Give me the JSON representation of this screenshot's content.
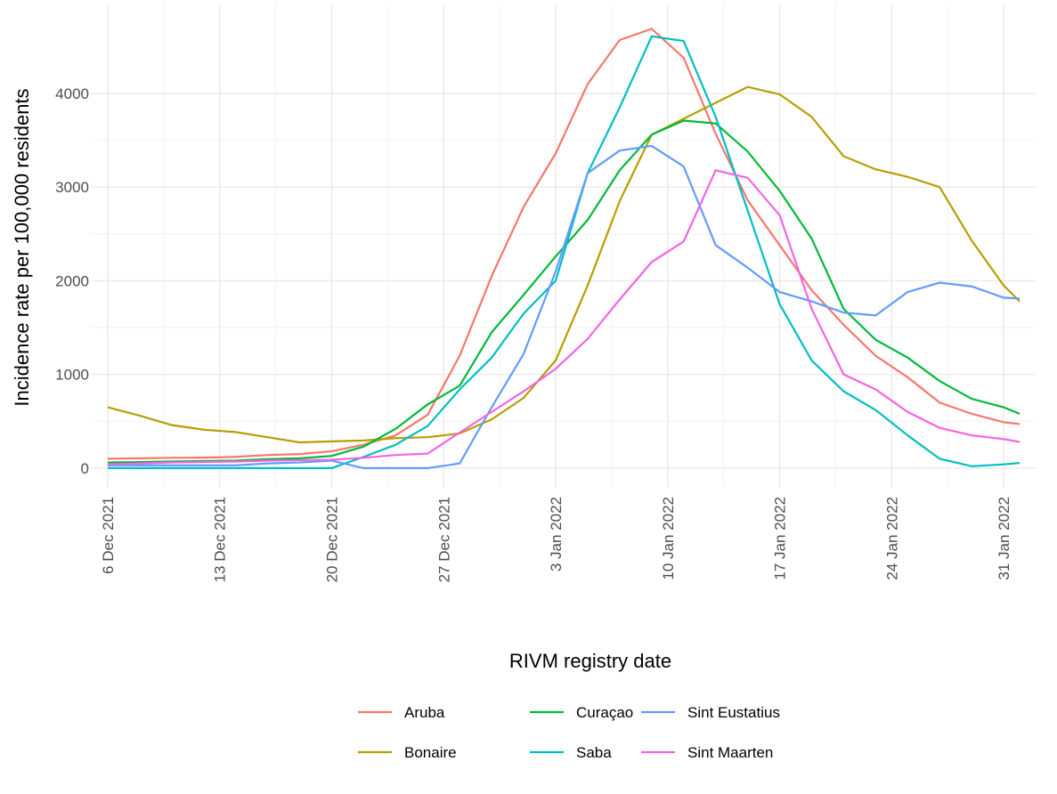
{
  "chart_data": {
    "type": "line",
    "x_label": "RIVM registry date",
    "y_label": "Incidence rate per 100,000 residents",
    "x": [
      "2021-12-06",
      "2021-12-08",
      "2021-12-10",
      "2021-12-12",
      "2021-12-14",
      "2021-12-16",
      "2021-12-18",
      "2021-12-20",
      "2021-12-22",
      "2021-12-24",
      "2021-12-26",
      "2021-12-28",
      "2021-12-30",
      "2022-01-01",
      "2022-01-03",
      "2022-01-05",
      "2022-01-07",
      "2022-01-09",
      "2022-01-11",
      "2022-01-13",
      "2022-01-15",
      "2022-01-17",
      "2022-01-19",
      "2022-01-21",
      "2022-01-23",
      "2022-01-25",
      "2022-01-27",
      "2022-01-29",
      "2022-01-31",
      "2022-02-01"
    ],
    "xlim": [
      "2021-12-05",
      "2022-02-02"
    ],
    "xticks": [
      {
        "value": "2021-12-06",
        "label": "6 Dec 2021"
      },
      {
        "value": "2021-12-13",
        "label": "13 Dec 2021"
      },
      {
        "value": "2021-12-20",
        "label": "20 Dec 2021"
      },
      {
        "value": "2021-12-27",
        "label": "27 Dec 2021"
      },
      {
        "value": "2022-01-03",
        "label": "3 Jan 2022"
      },
      {
        "value": "2022-01-10",
        "label": "10 Jan 2022"
      },
      {
        "value": "2022-01-17",
        "label": "17 Jan 2022"
      },
      {
        "value": "2022-01-24",
        "label": "24 Jan 2022"
      },
      {
        "value": "2022-01-31",
        "label": "31 Jan 2022"
      }
    ],
    "ylim": [
      -210,
      4950
    ],
    "yticks": [
      0,
      1000,
      2000,
      3000,
      4000
    ],
    "grid": true,
    "legend": "bottom",
    "series": [
      {
        "name": "Aruba",
        "color": "#F8766D",
        "values": [
          100,
          105,
          110,
          112,
          120,
          140,
          150,
          180,
          250,
          350,
          570,
          1200,
          2050,
          2790,
          3360,
          4100,
          4570,
          4690,
          4380,
          3570,
          2860,
          2380,
          1900,
          1530,
          1200,
          970,
          700,
          580,
          490,
          470
        ]
      },
      {
        "name": "Bonaire",
        "color": "#B79F00",
        "values": [
          650,
          560,
          460,
          410,
          385,
          330,
          275,
          285,
          295,
          320,
          330,
          370,
          520,
          750,
          1150,
          1950,
          2850,
          3560,
          3730,
          3900,
          4070,
          3990,
          3750,
          3330,
          3190,
          3110,
          3000,
          2430,
          1950,
          1780
        ]
      },
      {
        "name": "Curaçao",
        "color": "#00BA38",
        "values": [
          60,
          65,
          70,
          75,
          80,
          95,
          105,
          130,
          230,
          420,
          680,
          880,
          1450,
          1850,
          2260,
          2650,
          3180,
          3560,
          3710,
          3680,
          3380,
          2960,
          2450,
          1700,
          1370,
          1180,
          930,
          740,
          650,
          580
        ]
      },
      {
        "name": "Saba",
        "color": "#00BFC4",
        "values": [
          0,
          0,
          0,
          0,
          0,
          0,
          0,
          0,
          120,
          250,
          450,
          840,
          1180,
          1650,
          2000,
          3150,
          3850,
          4610,
          4560,
          3750,
          2750,
          1750,
          1150,
          820,
          620,
          350,
          100,
          20,
          40,
          55
        ]
      },
      {
        "name": "Sint Eustatius",
        "color": "#619CFF",
        "values": [
          30,
          30,
          30,
          30,
          30,
          50,
          60,
          80,
          0,
          0,
          0,
          50,
          650,
          1220,
          2100,
          3150,
          3390,
          3440,
          3220,
          2380,
          2140,
          1880,
          1780,
          1660,
          1630,
          1880,
          1980,
          1940,
          1820,
          1810
        ]
      },
      {
        "name": "Sint Maarten",
        "color": "#F564E3",
        "values": [
          40,
          50,
          60,
          65,
          70,
          80,
          85,
          90,
          110,
          140,
          155,
          380,
          600,
          820,
          1060,
          1380,
          1800,
          2200,
          2420,
          3180,
          3100,
          2700,
          1700,
          1000,
          840,
          600,
          430,
          350,
          310,
          280
        ]
      }
    ]
  }
}
